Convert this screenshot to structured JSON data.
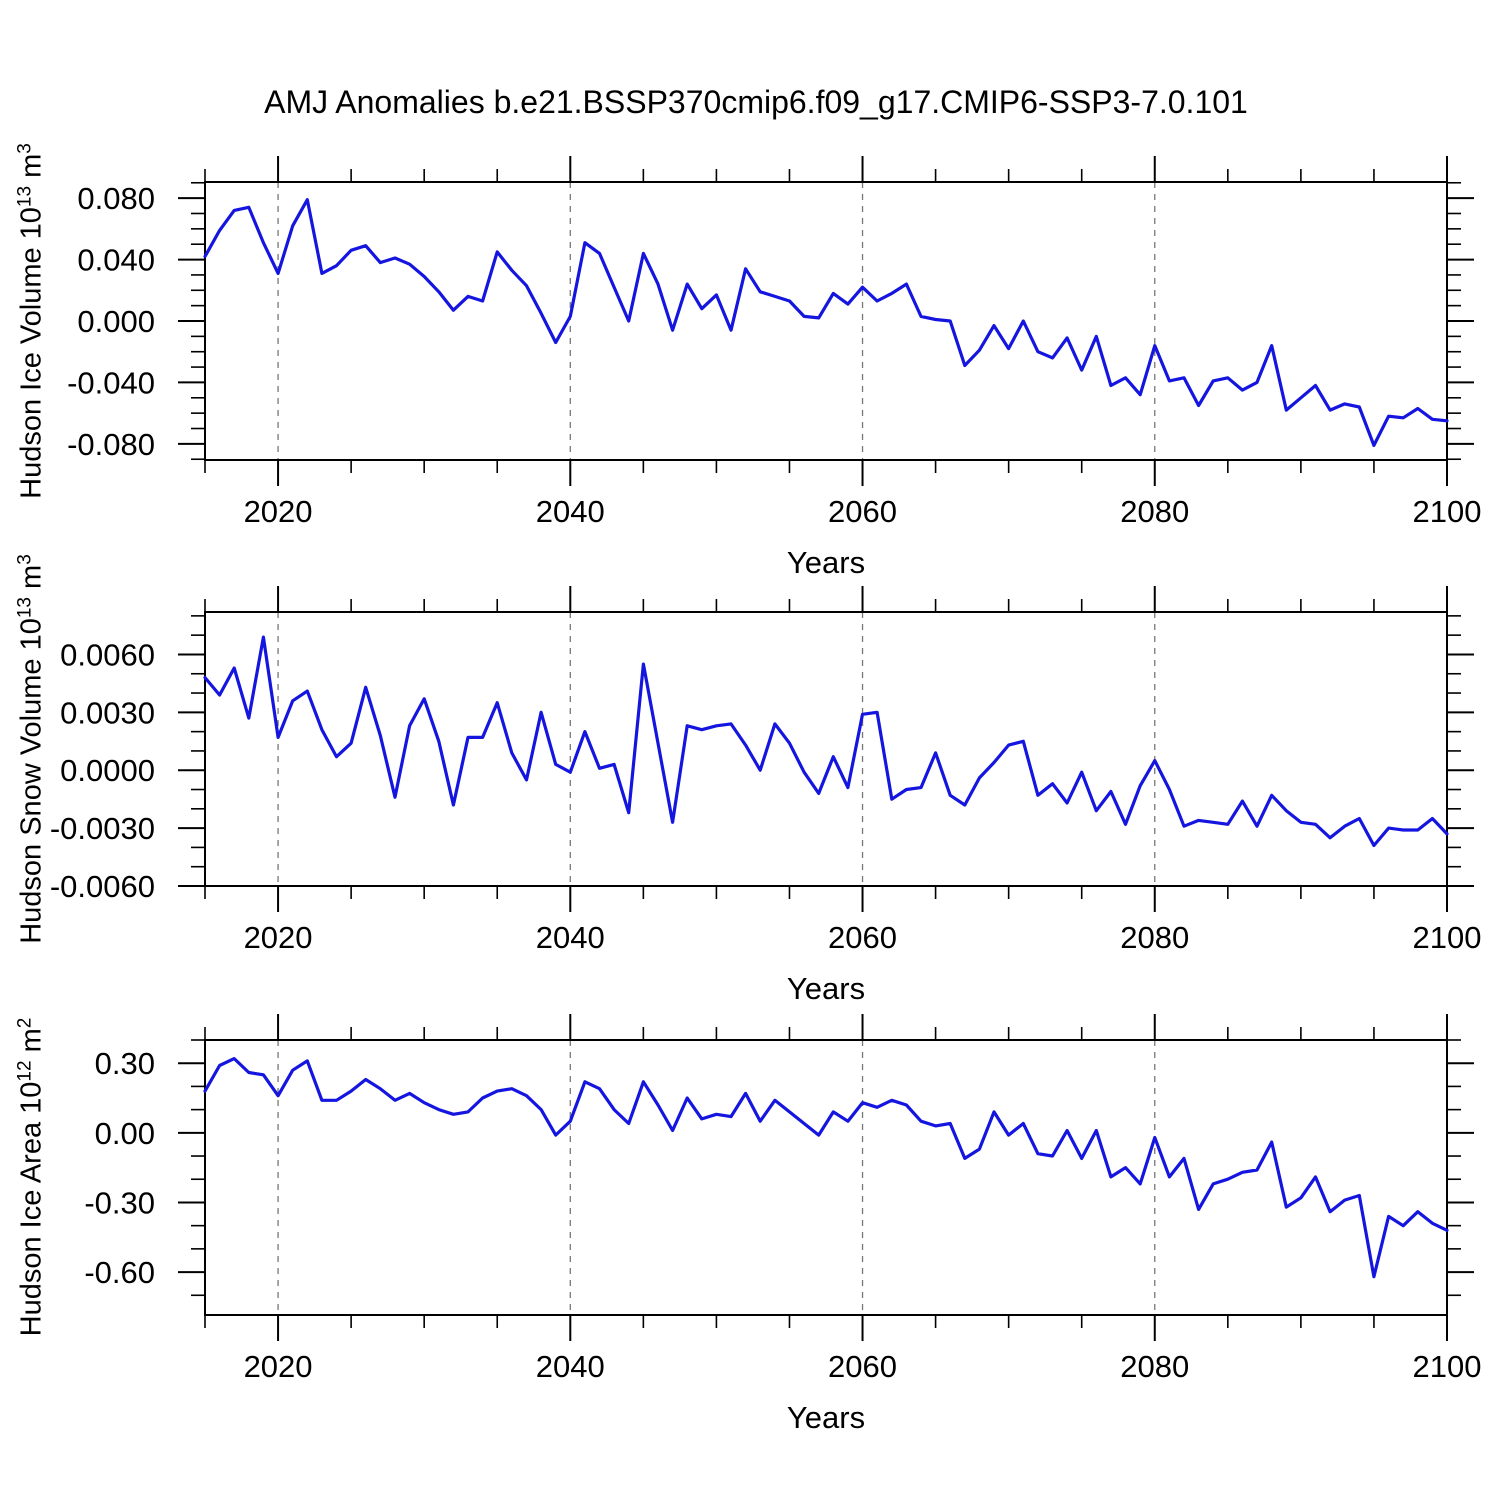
{
  "title": "AMJ Anomalies b.e21.BSSP370cmip6.f09_g17.CMIP6-SSP3-7.0.101",
  "colors": {
    "line": "#1515e0",
    "grid": "#777777",
    "axis": "#000000",
    "background": "#ffffff"
  },
  "x_axis": {
    "label": "Years",
    "range": [
      2015,
      2100
    ],
    "major_ticks": [
      2020,
      2040,
      2060,
      2080,
      2100
    ],
    "major_tick_labels": [
      "2020",
      "2040",
      "2060",
      "2080",
      "2100"
    ],
    "minor_step": 5,
    "gridlines": [
      2020,
      2040,
      2060,
      2080
    ]
  },
  "chart_data": [
    {
      "type": "line",
      "name": "hudson-ice-volume",
      "ylabel": {
        "prefix": "Hudson Ice Volume 10",
        "exp": "13",
        "unit": " m",
        "unit_exp": "3"
      },
      "xlabel": "Years",
      "ylim": [
        -0.0905,
        0.0905
      ],
      "ytick_major": [
        0.08,
        0.04,
        0.0,
        -0.04,
        -0.08
      ],
      "ytick_labels": [
        "0.080",
        "0.040",
        "0.000",
        "-0.040",
        "-0.080"
      ],
      "ytick_minor_step": 0.01,
      "years": {
        "start": 2015,
        "end": 2100
      },
      "values": [
        0.042,
        0.059,
        0.072,
        0.074,
        0.051,
        0.031,
        0.062,
        0.079,
        0.031,
        0.036,
        0.046,
        0.049,
        0.038,
        0.041,
        0.037,
        0.029,
        0.019,
        0.007,
        0.016,
        0.013,
        0.045,
        0.033,
        0.023,
        0.005,
        -0.014,
        0.003,
        0.051,
        0.044,
        0.022,
        0.0,
        0.044,
        0.024,
        -0.006,
        0.024,
        0.008,
        0.017,
        -0.006,
        0.034,
        0.019,
        0.016,
        0.013,
        0.003,
        0.002,
        0.018,
        0.011,
        0.022,
        0.013,
        0.018,
        0.024,
        0.003,
        0.001,
        0.0,
        -0.029,
        -0.019,
        -0.003,
        -0.018,
        0.0,
        -0.02,
        -0.024,
        -0.011,
        -0.032,
        -0.01,
        -0.042,
        -0.037,
        -0.048,
        -0.016,
        -0.039,
        -0.037,
        -0.055,
        -0.039,
        -0.037,
        -0.045,
        -0.04,
        -0.016,
        -0.058,
        -0.05,
        -0.042,
        -0.058,
        -0.054,
        -0.056,
        -0.081,
        -0.062,
        -0.063,
        -0.057,
        -0.064,
        -0.065
      ]
    },
    {
      "type": "line",
      "name": "hudson-snow-volume",
      "ylabel": {
        "prefix": "Hudson Snow Volume 10",
        "exp": "13",
        "unit": " m",
        "unit_exp": "3"
      },
      "xlabel": "Years",
      "ylim": [
        -0.006,
        0.0082
      ],
      "ytick_major": [
        0.006,
        0.003,
        0.0,
        -0.003,
        -0.006
      ],
      "ytick_labels": [
        "0.0060",
        "0.0030",
        "0.0000",
        "-0.0030",
        "-0.0060"
      ],
      "ytick_minor_step": 0.001,
      "years": {
        "start": 2015,
        "end": 2100
      },
      "values": [
        0.0048,
        0.0039,
        0.0053,
        0.0027,
        0.0069,
        0.0017,
        0.0036,
        0.0041,
        0.0021,
        0.0007,
        0.0014,
        0.0043,
        0.0018,
        -0.0014,
        0.0023,
        0.0037,
        0.0015,
        -0.0018,
        0.0017,
        0.0017,
        0.0035,
        0.0009,
        -0.0005,
        0.003,
        0.0003,
        -0.0001,
        0.002,
        0.0001,
        0.0003,
        -0.0022,
        0.0055,
        0.0014,
        -0.0027,
        0.0023,
        0.0021,
        0.0023,
        0.0024,
        0.0013,
        0.0,
        0.0024,
        0.0014,
        -0.0001,
        -0.0012,
        0.0007,
        -0.0009,
        0.0029,
        0.003,
        -0.0015,
        -0.001,
        -0.0009,
        0.0009,
        -0.0013,
        -0.0018,
        -0.0004,
        0.0004,
        0.0013,
        0.0015,
        -0.0013,
        -0.0007,
        -0.0017,
        -0.0001,
        -0.0021,
        -0.0011,
        -0.0028,
        -0.0008,
        0.0005,
        -0.001,
        -0.0029,
        -0.0026,
        -0.0027,
        -0.0028,
        -0.0016,
        -0.0029,
        -0.0013,
        -0.0021,
        -0.0027,
        -0.0028,
        -0.0035,
        -0.0029,
        -0.0025,
        -0.0039,
        -0.003,
        -0.0031,
        -0.0031,
        -0.0025,
        -0.0033
      ]
    },
    {
      "type": "line",
      "name": "hudson-ice-area",
      "ylabel": {
        "prefix": "Hudson Ice Area 10",
        "exp": "12",
        "unit": " m",
        "unit_exp": "2"
      },
      "xlabel": "Years",
      "ylim": [
        -0.785,
        0.4
      ],
      "ytick_major": [
        0.3,
        0.0,
        -0.3,
        -0.6
      ],
      "ytick_labels": [
        "0.30",
        "0.00",
        "-0.30",
        "-0.60"
      ],
      "ytick_minor_step": 0.1,
      "years": {
        "start": 2015,
        "end": 2100
      },
      "values": [
        0.18,
        0.29,
        0.32,
        0.26,
        0.25,
        0.16,
        0.27,
        0.31,
        0.14,
        0.14,
        0.18,
        0.23,
        0.19,
        0.14,
        0.17,
        0.13,
        0.1,
        0.08,
        0.09,
        0.15,
        0.18,
        0.19,
        0.16,
        0.1,
        -0.01,
        0.05,
        0.22,
        0.19,
        0.1,
        0.04,
        0.22,
        0.12,
        0.01,
        0.15,
        0.06,
        0.08,
        0.07,
        0.17,
        0.05,
        0.14,
        0.09,
        0.04,
        -0.01,
        0.09,
        0.05,
        0.13,
        0.11,
        0.14,
        0.12,
        0.05,
        0.03,
        0.04,
        -0.11,
        -0.07,
        0.09,
        -0.01,
        0.04,
        -0.09,
        -0.1,
        0.01,
        -0.11,
        0.01,
        -0.19,
        -0.15,
        -0.22,
        -0.02,
        -0.19,
        -0.11,
        -0.33,
        -0.22,
        -0.2,
        -0.17,
        -0.16,
        -0.04,
        -0.32,
        -0.28,
        -0.19,
        -0.34,
        -0.29,
        -0.27,
        -0.62,
        -0.36,
        -0.4,
        -0.34,
        -0.39,
        -0.42
      ]
    }
  ]
}
